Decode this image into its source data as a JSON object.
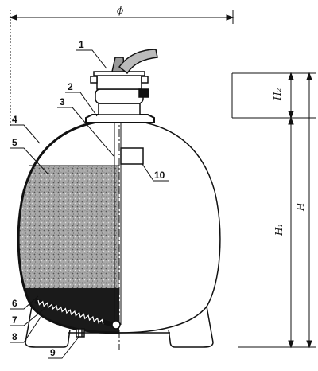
{
  "drawing": {
    "dimension_labels": {
      "diameter": "ϕ",
      "height_top": "H₂",
      "height_body": "H₁",
      "height_total": "H"
    },
    "part_labels": [
      "1",
      "2",
      "3",
      "4",
      "5",
      "6",
      "7",
      "8",
      "9",
      "10"
    ],
    "colors": {
      "ink": "#111111",
      "media": "#9a9a9a",
      "gravel": "#1a1a1a",
      "paper": "#ffffff"
    }
  }
}
